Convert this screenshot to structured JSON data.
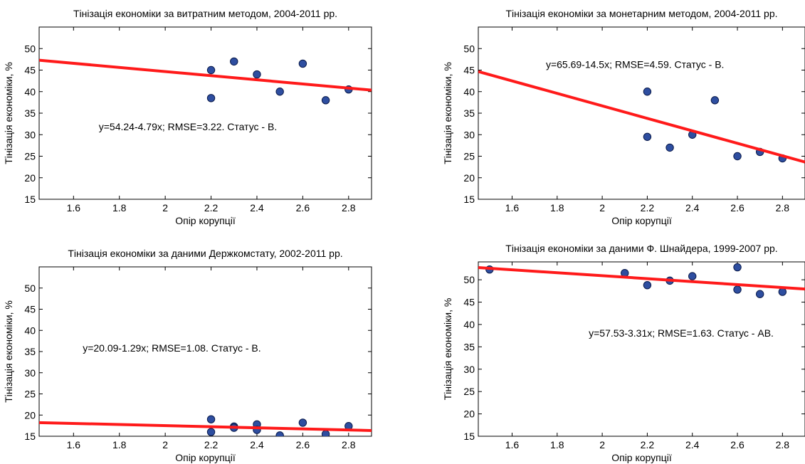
{
  "figure": {
    "background": "#ffffff"
  },
  "style": {
    "point_fill": "#2e4ea0",
    "point_stroke": "#0a1a4a",
    "line_color": "#ff1a1a",
    "frame_color": "#000000"
  },
  "chart_data": [
    {
      "type": "scatter",
      "title": "Тінізація економіки за витратним методом, 2004-2011 рр.",
      "xlabel": "Опір  корупції",
      "ylabel": "Тінізація  економіки, %",
      "xlim": [
        1.45,
        2.9
      ],
      "ylim": [
        15,
        55
      ],
      "xticks": [
        1.6,
        1.8,
        2,
        2.2,
        2.4,
        2.6,
        2.8
      ],
      "xtick_labels": [
        "1.6",
        "1.8",
        "2",
        "2.2",
        "2.4",
        "2.6",
        "2.8"
      ],
      "yticks": [
        15,
        20,
        25,
        30,
        35,
        40,
        45,
        50
      ],
      "ytick_labels": [
        "15",
        "20",
        "25",
        "30",
        "35",
        "40",
        "45",
        "50"
      ],
      "grid": false,
      "points": {
        "x": [
          2.2,
          2.2,
          2.3,
          2.4,
          2.5,
          2.6,
          2.7,
          2.8
        ],
        "y": [
          45,
          38.5,
          47,
          44,
          40,
          46.5,
          38,
          40.5
        ]
      },
      "fit_line": {
        "intercept": 54.24,
        "slope": -4.79
      },
      "annotation": {
        "text": "y=54.24-4.79x;  RMSE=3.22.    Статус - В.",
        "x": 1.71,
        "y": 31
      }
    },
    {
      "type": "scatter",
      "title": "Тінізація економіки за монетарним методом, 2004-2011 рр.",
      "xlabel": "Опір  корупції",
      "ylabel": "Тінізація  економіки, %",
      "xlim": [
        1.45,
        2.9
      ],
      "ylim": [
        15,
        55
      ],
      "xticks": [
        1.6,
        1.8,
        2,
        2.2,
        2.4,
        2.6,
        2.8
      ],
      "xtick_labels": [
        "1.6",
        "1.8",
        "2",
        "2.2",
        "2.4",
        "2.6",
        "2.8"
      ],
      "yticks": [
        15,
        20,
        25,
        30,
        35,
        40,
        45,
        50
      ],
      "ytick_labels": [
        "15",
        "20",
        "25",
        "30",
        "35",
        "40",
        "45",
        "50"
      ],
      "grid": false,
      "points": {
        "x": [
          2.2,
          2.2,
          2.3,
          2.4,
          2.5,
          2.6,
          2.7,
          2.8
        ],
        "y": [
          40,
          29.5,
          27,
          30,
          38,
          25,
          26,
          24.5
        ]
      },
      "fit_line": {
        "intercept": 65.69,
        "slope": -14.5
      },
      "annotation": {
        "text": "y=65.69-14.5x; RMSE=4.59.     Статус - В.",
        "x": 1.75,
        "y": 45.5
      }
    },
    {
      "type": "scatter",
      "title": "Тінізація економіки за даними Держкомстату, 2002-2011 рр.",
      "xlabel": "Опір  корупції",
      "ylabel": "Тінізація  економіки, %",
      "xlim": [
        1.45,
        2.9
      ],
      "ylim": [
        15,
        55
      ],
      "xticks": [
        1.6,
        1.8,
        2,
        2.2,
        2.4,
        2.6,
        2.8
      ],
      "xtick_labels": [
        "1.6",
        "1.8",
        "2",
        "2.2",
        "2.4",
        "2.6",
        "2.8"
      ],
      "yticks": [
        15,
        20,
        25,
        30,
        35,
        40,
        45,
        50
      ],
      "ytick_labels": [
        "15",
        "20",
        "25",
        "30",
        "35",
        "40",
        "45",
        "50"
      ],
      "grid": false,
      "points": {
        "x": [
          2.2,
          2.2,
          2.3,
          2.3,
          2.4,
          2.4,
          2.5,
          2.6,
          2.7,
          2.8
        ],
        "y": [
          19,
          16,
          17.3,
          17,
          17.8,
          16.5,
          15.2,
          18.2,
          15.5,
          17.4
        ]
      },
      "fit_line": {
        "intercept": 20.09,
        "slope": -1.29
      },
      "annotation": {
        "text": "y=20.09-1.29x; RMSE=1.08.     Статус - В.",
        "x": 1.64,
        "y": 35
      }
    },
    {
      "type": "scatter",
      "title": "Тінізація економіки за даними Ф. Шнайдера, 1999-2007 рр.",
      "xlabel": "Опір  корупції",
      "ylabel": "Тінізація  економіки, %",
      "xlim": [
        1.45,
        2.9
      ],
      "ylim": [
        15,
        54
      ],
      "xticks": [
        1.6,
        1.8,
        2,
        2.2,
        2.4,
        2.6,
        2.8
      ],
      "xtick_labels": [
        "1.6",
        "1.8",
        "2",
        "2.2",
        "2.4",
        "2.6",
        "2.8"
      ],
      "yticks": [
        15,
        20,
        25,
        30,
        35,
        40,
        45,
        50
      ],
      "ytick_labels": [
        "15",
        "20",
        "25",
        "30",
        "35",
        "40",
        "45",
        "50"
      ],
      "grid": false,
      "points": {
        "x": [
          1.5,
          2.1,
          2.2,
          2.3,
          2.4,
          2.6,
          2.6,
          2.7,
          2.8
        ],
        "y": [
          52.3,
          51.5,
          48.8,
          49.8,
          50.8,
          52.8,
          47.8,
          46.8,
          47.3
        ]
      },
      "fit_line": {
        "intercept": 57.53,
        "slope": -3.31
      },
      "annotation": {
        "text": "y=57.53-3.31x; RMSE=1.63.     Статус - АВ.",
        "x": 1.94,
        "y": 37.3
      }
    }
  ]
}
